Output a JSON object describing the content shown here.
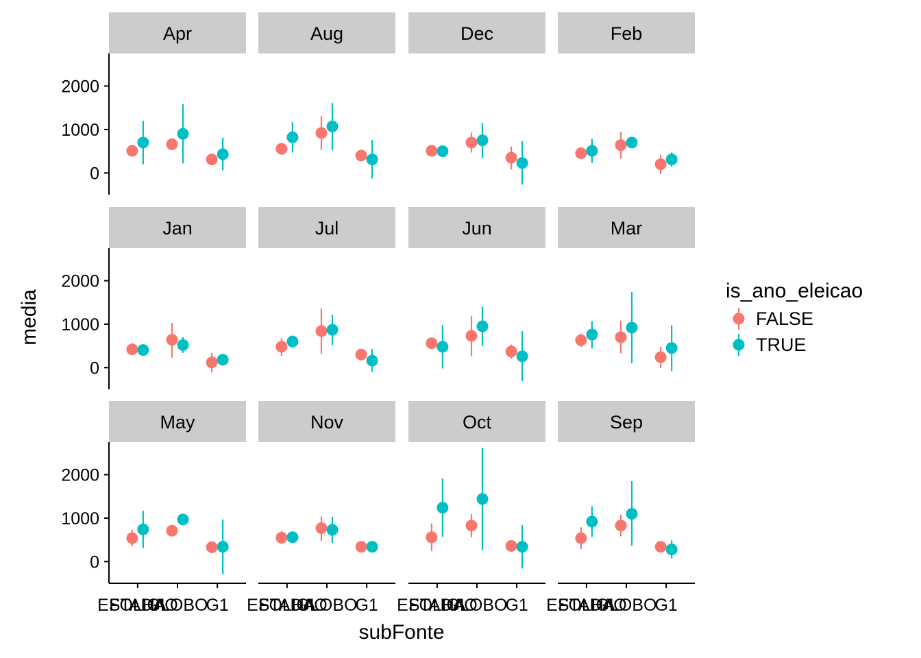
{
  "chart_data": {
    "type": "scatter",
    "subtype": "pointrange faceted small multiples",
    "xlabel": "subFonte",
    "ylabel": "media",
    "categories": [
      "ESTADAO",
      "FOLHA",
      "GLOBO",
      "G1"
    ],
    "x_tick_labels": [
      "ESTADAO",
      "FOLHA",
      "GLOBO",
      "G1"
    ],
    "y_ticks": [
      0,
      1000,
      2000
    ],
    "ylim": [
      -500,
      2750
    ],
    "grid": false,
    "legend": {
      "title": "is_ano_eleicao",
      "position": "right",
      "entries": [
        {
          "label": "FALSE",
          "color": "#F8766D"
        },
        {
          "label": "TRUE",
          "color": "#00BFC4"
        }
      ]
    },
    "facets": [
      {
        "label": "Apr",
        "series": [
          {
            "group": "FALSE",
            "values": [
              [
                1,
                510,
                420,
                600
              ],
              [
                2,
                660,
                530,
                790
              ],
              [
                3,
                310,
                230,
                390
              ]
            ]
          },
          {
            "group": "TRUE",
            "values": [
              [
                1,
                700,
                200,
                1200
              ],
              [
                2,
                900,
                220,
                1580
              ],
              [
                3,
                430,
                60,
                810
              ]
            ]
          }
        ]
      },
      {
        "label": "Aug",
        "series": [
          {
            "group": "FALSE",
            "values": [
              [
                1,
                555,
                470,
                640
              ],
              [
                2,
                920,
                530,
                1310
              ],
              [
                3,
                400,
                320,
                480
              ]
            ]
          },
          {
            "group": "TRUE",
            "values": [
              [
                1,
                820,
                470,
                1170
              ],
              [
                2,
                1070,
                520,
                1610
              ],
              [
                3,
                310,
                -130,
                760
              ]
            ]
          }
        ]
      },
      {
        "label": "Dec",
        "series": [
          {
            "group": "FALSE",
            "values": [
              [
                1,
                510,
                440,
                580
              ],
              [
                2,
                700,
                470,
                930
              ],
              [
                3,
                350,
                80,
                610
              ]
            ]
          },
          {
            "group": "TRUE",
            "values": [
              [
                1,
                500,
                420,
                580
              ],
              [
                2,
                750,
                340,
                1150
              ],
              [
                3,
                230,
                -270,
                730
              ]
            ]
          }
        ]
      },
      {
        "label": "Feb",
        "series": [
          {
            "group": "FALSE",
            "values": [
              [
                1,
                455,
                390,
                520
              ],
              [
                2,
                640,
                330,
                940
              ],
              [
                3,
                200,
                -30,
                420
              ]
            ]
          },
          {
            "group": "TRUE",
            "values": [
              [
                1,
                510,
                230,
                780
              ],
              [
                2,
                700,
                600,
                800
              ],
              [
                3,
                310,
                140,
                470
              ]
            ]
          }
        ]
      },
      {
        "label": "Jan",
        "series": [
          {
            "group": "FALSE",
            "values": [
              [
                1,
                420,
                350,
                490
              ],
              [
                2,
                640,
                230,
                1030
              ],
              [
                3,
                120,
                -110,
                340
              ]
            ]
          },
          {
            "group": "TRUE",
            "values": [
              [
                1,
                405,
                300,
                510
              ],
              [
                2,
                520,
                340,
                700
              ],
              [
                3,
                180,
                120,
                240
              ]
            ]
          }
        ]
      },
      {
        "label": "Jul",
        "series": [
          {
            "group": "FALSE",
            "values": [
              [
                1,
                480,
                270,
                680
              ],
              [
                2,
                840,
                320,
                1360
              ],
              [
                3,
                300,
                220,
                380
              ]
            ]
          },
          {
            "group": "TRUE",
            "values": [
              [
                1,
                600,
                460,
                740
              ],
              [
                2,
                870,
                520,
                1210
              ],
              [
                3,
                160,
                -100,
                430
              ]
            ]
          }
        ]
      },
      {
        "label": "Jun",
        "series": [
          {
            "group": "FALSE",
            "values": [
              [
                1,
                560,
                430,
                690
              ],
              [
                2,
                730,
                260,
                1190
              ],
              [
                3,
                370,
                200,
                530
              ]
            ]
          },
          {
            "group": "TRUE",
            "values": [
              [
                1,
                480,
                -20,
                980
              ],
              [
                2,
                950,
                500,
                1400
              ],
              [
                3,
                260,
                -310,
                840
              ]
            ]
          }
        ]
      },
      {
        "label": "Mar",
        "series": [
          {
            "group": "FALSE",
            "values": [
              [
                1,
                630,
                480,
                780
              ],
              [
                2,
                700,
                330,
                1080
              ],
              [
                3,
                240,
                -10,
                480
              ]
            ]
          },
          {
            "group": "TRUE",
            "values": [
              [
                1,
                760,
                440,
                1070
              ],
              [
                2,
                920,
                100,
                1740
              ],
              [
                3,
                450,
                -80,
                980
              ]
            ]
          }
        ]
      },
      {
        "label": "May",
        "series": [
          {
            "group": "FALSE",
            "values": [
              [
                1,
                540,
                350,
                730
              ],
              [
                2,
                710,
                600,
                820
              ],
              [
                3,
                330,
                270,
                390
              ]
            ]
          },
          {
            "group": "TRUE",
            "values": [
              [
                1,
                740,
                310,
                1170
              ],
              [
                2,
                970,
                880,
                1060
              ],
              [
                3,
                340,
                -290,
                970
              ]
            ]
          }
        ]
      },
      {
        "label": "Nov",
        "series": [
          {
            "group": "FALSE",
            "values": [
              [
                1,
                550,
                400,
                700
              ],
              [
                2,
                770,
                480,
                1040
              ],
              [
                3,
                340,
                270,
                410
              ]
            ]
          },
          {
            "group": "TRUE",
            "values": [
              [
                1,
                560,
                480,
                640
              ],
              [
                2,
                730,
                430,
                1030
              ],
              [
                3,
                340,
                260,
                420
              ]
            ]
          }
        ]
      },
      {
        "label": "Oct",
        "series": [
          {
            "group": "FALSE",
            "values": [
              [
                1,
                560,
                240,
                880
              ],
              [
                2,
                830,
                560,
                1090
              ],
              [
                3,
                360,
                290,
                430
              ]
            ]
          },
          {
            "group": "TRUE",
            "values": [
              [
                1,
                1240,
                570,
                1910
              ],
              [
                2,
                1440,
                260,
                2620
              ],
              [
                3,
                340,
                -160,
                840
              ]
            ]
          }
        ]
      },
      {
        "label": "Sep",
        "series": [
          {
            "group": "FALSE",
            "values": [
              [
                1,
                540,
                290,
                790
              ],
              [
                2,
                830,
                580,
                1080
              ],
              [
                3,
                340,
                280,
                400
              ]
            ]
          },
          {
            "group": "TRUE",
            "values": [
              [
                1,
                920,
                570,
                1270
              ],
              [
                2,
                1100,
                360,
                1850
              ],
              [
                3,
                280,
                70,
                490
              ]
            ]
          }
        ]
      }
    ]
  }
}
